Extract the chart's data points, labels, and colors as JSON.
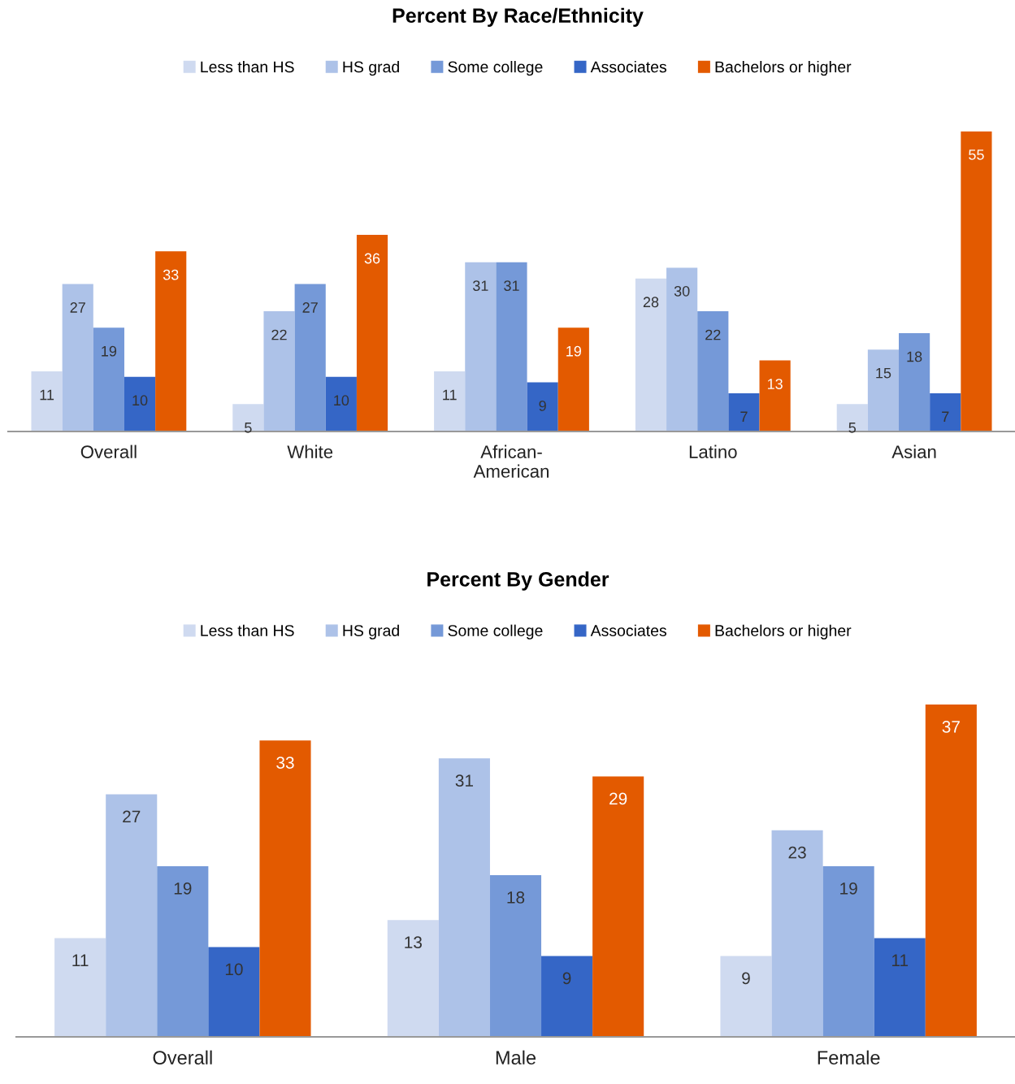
{
  "chart_data": [
    {
      "type": "bar",
      "title": "Percent By Race/Ethnicity",
      "categories": [
        "Overall",
        "White",
        "African-\nAmerican",
        "Latino",
        "Asian"
      ],
      "legend": "top",
      "grid": false,
      "data_labels": true,
      "series": [
        {
          "name": "Less than HS",
          "color": "#cfdaf0",
          "values": [
            11,
            5,
            11,
            28,
            5
          ]
        },
        {
          "name": "HS grad",
          "color": "#adc2e8",
          "values": [
            27,
            22,
            31,
            30,
            15
          ]
        },
        {
          "name": "Some college",
          "color": "#7599d8",
          "values": [
            19,
            27,
            31,
            22,
            18
          ]
        },
        {
          "name": "Associates",
          "color": "#3566c6",
          "values": [
            10,
            10,
            9,
            7,
            7
          ]
        },
        {
          "name": "Bachelors or higher",
          "color": "#e35a00",
          "values": [
            33,
            36,
            19,
            13,
            55
          ]
        }
      ]
    },
    {
      "type": "bar",
      "title": "Percent By Gender",
      "categories": [
        "Overall",
        "Male",
        "Female"
      ],
      "legend": "top",
      "grid": false,
      "data_labels": true,
      "series": [
        {
          "name": "Less than HS",
          "color": "#cfdaf0",
          "values": [
            11,
            13,
            9
          ]
        },
        {
          "name": "HS grad",
          "color": "#adc2e8",
          "values": [
            27,
            31,
            23
          ]
        },
        {
          "name": "Some college",
          "color": "#7599d8",
          "values": [
            19,
            18,
            19
          ]
        },
        {
          "name": "Associates",
          "color": "#3566c6",
          "values": [
            10,
            9,
            11
          ]
        },
        {
          "name": "Bachelors or higher",
          "color": "#e35a00",
          "values": [
            33,
            29,
            37
          ]
        }
      ]
    }
  ]
}
